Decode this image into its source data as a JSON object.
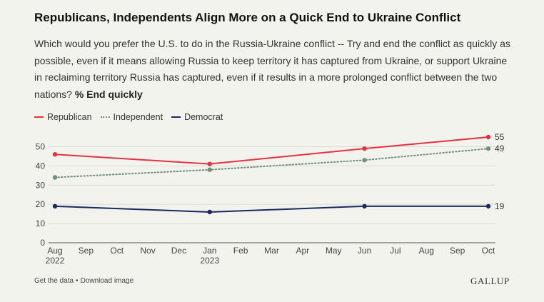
{
  "header": {
    "title": "Republicans, Independents Align More on a Quick End to Ukraine Conflict",
    "subtitle": "Which would you prefer the U.S. to do in the Russia-Ukraine conflict -- Try and end the conflict as quickly as possible, even if it means allowing Russia to keep territory it has captured from Ukraine, or support Ukraine in reclaiming territory Russia has captured, even if it results in a more prolonged conflict between the two nations?",
    "subtitle_bold": "% End quickly"
  },
  "footer": {
    "get_data": "Get the data",
    "separator": "•",
    "download": "Download image",
    "brand": "GALLUP"
  },
  "chart_data": {
    "type": "line",
    "x_ticks": [
      "Aug",
      "Sep",
      "Oct",
      "Nov",
      "Dec",
      "Jan",
      "Feb",
      "Mar",
      "Apr",
      "May",
      "Jun",
      "Jul",
      "Aug",
      "Sep",
      "Oct"
    ],
    "x_year_labels": [
      {
        "tick_index": 0,
        "label": "2022"
      },
      {
        "tick_index": 5,
        "label": "2023"
      }
    ],
    "x": [
      "Aug 2022",
      "Jan 2023",
      "Jun 2023",
      "Oct 2023"
    ],
    "x_tick_index": [
      0,
      5,
      10,
      14
    ],
    "y_ticks": [
      0,
      10,
      20,
      30,
      40,
      50
    ],
    "ylim": [
      0,
      55
    ],
    "grid": true,
    "legend_position": "top-left",
    "series": [
      {
        "name": "Republican",
        "color": "#e4323f",
        "style": "solid",
        "values": [
          46,
          41,
          49,
          55
        ],
        "end_label": "55"
      },
      {
        "name": "Independent",
        "color": "#6f8f7f",
        "style": "dotted",
        "values": [
          34,
          38,
          43,
          49
        ],
        "end_label": "49"
      },
      {
        "name": "Democrat",
        "color": "#1b2a5c",
        "style": "solid",
        "values": [
          19,
          16,
          19,
          19
        ],
        "end_label": "19"
      }
    ]
  }
}
